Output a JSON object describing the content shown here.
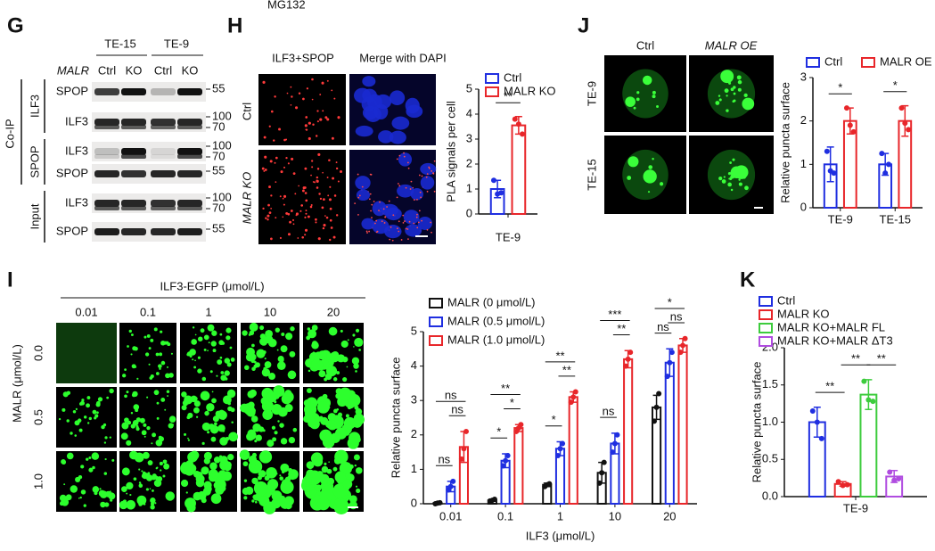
{
  "top_label": "MG132",
  "blot": {
    "letter": "G",
    "cell_lines": [
      "TE-15",
      "TE-9"
    ],
    "row_header": "MALR",
    "lanes": [
      "Ctrl",
      "KO",
      "Ctrl",
      "KO"
    ],
    "group_label": "Co-IP",
    "sections": [
      {
        "label": "ILF3",
        "rows": [
          {
            "label": "SPOP",
            "markers": [
              55
            ]
          },
          {
            "label": "ILF3",
            "markers": [
              100,
              70
            ]
          }
        ]
      },
      {
        "label": "SPOP",
        "rows": [
          {
            "label": "ILF3",
            "markers": [
              100,
              70
            ]
          },
          {
            "label": "SPOP",
            "markers": [
              55
            ]
          }
        ]
      },
      {
        "label": "Input",
        "rows": [
          {
            "label": "ILF3",
            "markers": [
              100,
              70
            ]
          },
          {
            "label": "SPOP",
            "markers": [
              55
            ]
          }
        ]
      }
    ]
  },
  "h_images": {
    "letter": "H",
    "columns": [
      "ILF3+SPOP",
      "Merge with DAPI"
    ],
    "rows": [
      "Ctrl",
      "MALR KO"
    ]
  },
  "j_images": {
    "letter": "J",
    "columns": [
      "Ctrl",
      "MALR OE"
    ],
    "rows": [
      "TE-9",
      "TE-15"
    ]
  },
  "i_images": {
    "letter": "I",
    "title": "ILF3-EGFP (μmol/L)",
    "columns": [
      "0.01",
      "0.1",
      "1",
      "10",
      "20"
    ],
    "row_title": "MALR (μmol/L)",
    "rows": [
      "0.0",
      "0.5",
      "1.0"
    ]
  },
  "k_panel": {
    "letter": "K"
  },
  "chart_data": [
    {
      "type": "bar",
      "y_label": "PLA signals per cell",
      "categories": [
        "TE-9"
      ],
      "ylim": [
        0,
        5
      ],
      "yticks": [
        0,
        1,
        2,
        3,
        4,
        5
      ],
      "series": [
        {
          "name": "Ctrl",
          "color": "#1f2ee0",
          "values": [
            1.0
          ],
          "errors": [
            0.35
          ],
          "points": [
            [
              1.35,
              0.8,
              0.85
            ]
          ]
        },
        {
          "name": "MALR KO",
          "color": "#e8262a",
          "values": [
            3.55
          ],
          "errors": [
            0.35
          ],
          "points": [
            [
              3.8,
              3.6,
              3.2
            ]
          ]
        }
      ],
      "significance": [
        {
          "category": 0,
          "pair": [
            0,
            1
          ],
          "text": "**"
        }
      ]
    },
    {
      "type": "bar",
      "y_label": "Relative puncta surface",
      "categories": [
        "TE-9",
        "TE-15"
      ],
      "ylim": [
        0,
        3
      ],
      "yticks": [
        0,
        1,
        2,
        3
      ],
      "series": [
        {
          "name": "Ctrl",
          "color": "#1f2ee0",
          "values": [
            1.0,
            1.0
          ],
          "errors": [
            0.4,
            0.25
          ],
          "points": [
            [
              1.3,
              0.85,
              0.8
            ],
            [
              1.25,
              0.8,
              1.0
            ]
          ]
        },
        {
          "name": "MALR OE",
          "color": "#e8262a",
          "values": [
            2.0,
            2.0
          ],
          "errors": [
            0.3,
            0.35
          ],
          "points": [
            [
              2.3,
              1.9,
              1.75
            ],
            [
              2.3,
              1.95,
              1.8
            ]
          ]
        }
      ],
      "significance": [
        {
          "category": 0,
          "pair": [
            0,
            1
          ],
          "text": "*"
        },
        {
          "category": 1,
          "pair": [
            0,
            1
          ],
          "text": "*"
        }
      ]
    },
    {
      "type": "bar",
      "x_label": "ILF3 (μmol/L)",
      "y_label": "Relative puncta surface",
      "categories": [
        "0.01",
        "0.1",
        "1",
        "10",
        "20"
      ],
      "ylim": [
        0,
        5
      ],
      "yticks": [
        0,
        1,
        2,
        3,
        4,
        5
      ],
      "series": [
        {
          "name": "MALR (0 μmol/L)",
          "color": "#111111",
          "values": [
            0.02,
            0.1,
            0.55,
            0.9,
            2.8
          ],
          "errors": [
            0.01,
            0.03,
            0.05,
            0.3,
            0.35
          ],
          "points": [
            [
              0.0,
              0.02,
              0.03
            ],
            [
              0.08,
              0.1,
              0.13
            ],
            [
              0.5,
              0.55,
              0.58
            ],
            [
              0.6,
              0.9,
              1.2
            ],
            [
              2.4,
              2.8,
              3.2
            ]
          ]
        },
        {
          "name": "MALR (0.5 μmol/L)",
          "color": "#1f2ee0",
          "values": [
            0.5,
            1.25,
            1.6,
            1.75,
            4.1
          ],
          "errors": [
            0.15,
            0.2,
            0.2,
            0.3,
            0.4
          ],
          "points": [
            [
              0.4,
              0.5,
              0.65
            ],
            [
              1.1,
              1.25,
              1.4
            ],
            [
              1.4,
              1.6,
              1.75
            ],
            [
              1.5,
              1.75,
              2.0
            ],
            [
              3.7,
              4.1,
              4.4
            ]
          ]
        },
        {
          "name": "MALR (1.0 μmol/L)",
          "color": "#e8262a",
          "values": [
            1.65,
            2.2,
            3.1,
            4.2,
            4.6
          ],
          "errors": [
            0.45,
            0.1,
            0.15,
            0.25,
            0.2
          ],
          "points": [
            [
              1.3,
              1.6,
              2.1
            ],
            [
              2.1,
              2.2,
              2.3
            ],
            [
              2.95,
              3.1,
              3.25
            ],
            [
              4.0,
              4.2,
              4.4
            ],
            [
              4.4,
              4.6,
              4.8
            ]
          ]
        }
      ],
      "significance": [
        {
          "category": 0,
          "pair": [
            0,
            1
          ],
          "text": "ns"
        },
        {
          "category": 0,
          "pair": [
            1,
            2
          ],
          "text": "ns"
        },
        {
          "category": 0,
          "pair": [
            0,
            2
          ],
          "text": "ns"
        },
        {
          "category": 1,
          "pair": [
            0,
            1
          ],
          "text": "*"
        },
        {
          "category": 1,
          "pair": [
            1,
            2
          ],
          "text": "*"
        },
        {
          "category": 1,
          "pair": [
            0,
            2
          ],
          "text": "**"
        },
        {
          "category": 2,
          "pair": [
            0,
            1
          ],
          "text": "*"
        },
        {
          "category": 2,
          "pair": [
            1,
            2
          ],
          "text": "**"
        },
        {
          "category": 2,
          "pair": [
            0,
            2
          ],
          "text": "**"
        },
        {
          "category": 3,
          "pair": [
            0,
            1
          ],
          "text": "ns"
        },
        {
          "category": 3,
          "pair": [
            1,
            2
          ],
          "text": "**"
        },
        {
          "category": 3,
          "pair": [
            0,
            2
          ],
          "text": "***"
        },
        {
          "category": 4,
          "pair": [
            0,
            1
          ],
          "text": "ns"
        },
        {
          "category": 4,
          "pair": [
            1,
            2
          ],
          "text": "ns"
        },
        {
          "category": 4,
          "pair": [
            0,
            2
          ],
          "text": "*"
        }
      ]
    },
    {
      "type": "bar",
      "y_label": "Relative puncta surface",
      "categories": [
        "TE-9"
      ],
      "ylim": [
        0,
        2
      ],
      "yticks": [
        {
          "value": 0,
          "label": "0.0"
        },
        0.5,
        {
          "value": 1,
          "label": "1.0"
        },
        1.5,
        {
          "value": 2,
          "label": "2.0"
        }
      ],
      "series": [
        {
          "name": "Ctrl",
          "color": "#1f2ee0",
          "values": [
            1.0
          ],
          "errors": [
            0.2
          ],
          "points": [
            [
              1.15,
              1.0,
              0.78
            ]
          ]
        },
        {
          "name": "MALR KO",
          "color": "#e8262a",
          "values": [
            0.17
          ],
          "errors": [
            0.03
          ],
          "points": [
            [
              0.2,
              0.15,
              0.16
            ]
          ]
        },
        {
          "name": "MALR KO+MALR FL",
          "color": "#3dcc3d",
          "values": [
            1.37
          ],
          "errors": [
            0.2
          ],
          "points": [
            [
              1.55,
              1.3,
              1.28
            ]
          ]
        },
        {
          "name": "MALR KO+MALR ΔT3",
          "color": "#b04ce0",
          "values": [
            0.27
          ],
          "errors": [
            0.08
          ],
          "points": [
            [
              0.33,
              0.22,
              0.24
            ]
          ]
        }
      ],
      "significance": [
        {
          "category": 0,
          "pair": [
            0,
            1
          ],
          "text": "**"
        },
        {
          "category": 0,
          "pair": [
            1,
            2
          ],
          "text": "**"
        },
        {
          "category": 0,
          "pair": [
            2,
            3
          ],
          "text": "**"
        }
      ]
    }
  ]
}
